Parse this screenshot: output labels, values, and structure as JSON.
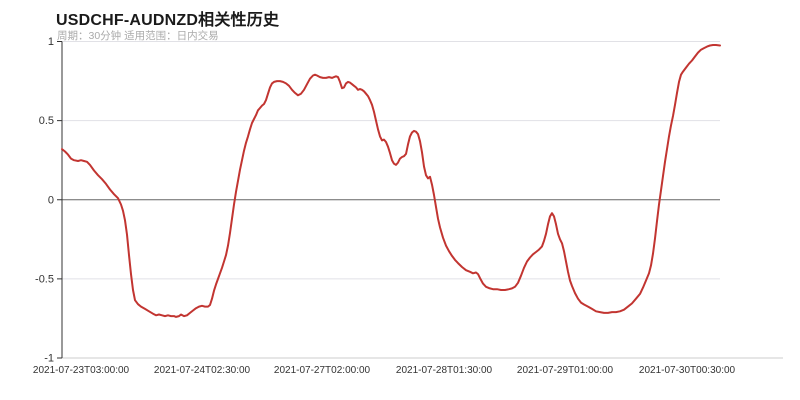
{
  "header": {
    "title": "USDCHF-AUDNZD相关性历史",
    "subtitle": "周期：30分钟 适用范围：日内交易"
  },
  "colors": {
    "line": "#c23531",
    "grid": "#e1e1e6",
    "zero_line": "#666666",
    "axis": "#333333",
    "baseline": "#cccccc",
    "tick_text": "#333333",
    "title": "#1a1a1a",
    "subtitle": "#aaaaaa"
  },
  "chart_data": {
    "type": "line",
    "title": "USDCHF-AUDNZD相关性历史",
    "series_name": "USDCHF-AUDNZD 相关性",
    "xlabel": "",
    "ylabel": "",
    "ylim": [
      -1,
      1
    ],
    "grid": "horizontal-only",
    "legend_position": "none",
    "y_tick_labels": [
      "1",
      "0.5",
      "0",
      "-0.5",
      "-1"
    ],
    "y_tick_values": [
      1,
      0.5,
      0,
      -0.5,
      -1
    ],
    "x_tick_labels": [
      "2021-07-23T03:00:00",
      "2021-07-24T02:30:00",
      "2021-07-27T02:00:00",
      "2021-07-28T01:30:00",
      "2021-07-29T01:00:00",
      "2021-07-30T00:30:00"
    ],
    "points": [
      [
        62,
        0.32
      ],
      [
        65,
        0.305
      ],
      [
        68,
        0.285
      ],
      [
        71,
        0.26
      ],
      [
        74,
        0.25
      ],
      [
        78,
        0.245
      ],
      [
        81,
        0.25
      ],
      [
        84,
        0.245
      ],
      [
        87,
        0.24
      ],
      [
        90,
        0.22
      ],
      [
        94,
        0.185
      ],
      [
        98,
        0.155
      ],
      [
        102,
        0.13
      ],
      [
        106,
        0.1
      ],
      [
        110,
        0.065
      ],
      [
        114,
        0.035
      ],
      [
        118,
        0.01
      ],
      [
        121,
        -0.03
      ],
      [
        123,
        -0.07
      ],
      [
        125,
        -0.13
      ],
      [
        127,
        -0.22
      ],
      [
        129,
        -0.35
      ],
      [
        131,
        -0.47
      ],
      [
        133,
        -0.57
      ],
      [
        135,
        -0.635
      ],
      [
        138,
        -0.66
      ],
      [
        141,
        -0.675
      ],
      [
        145,
        -0.69
      ],
      [
        149,
        -0.705
      ],
      [
        153,
        -0.72
      ],
      [
        156,
        -0.73
      ],
      [
        159,
        -0.725
      ],
      [
        162,
        -0.73
      ],
      [
        165,
        -0.735
      ],
      [
        168,
        -0.73
      ],
      [
        171,
        -0.735
      ],
      [
        174,
        -0.735
      ],
      [
        176,
        -0.74
      ],
      [
        179,
        -0.735
      ],
      [
        181,
        -0.725
      ],
      [
        184,
        -0.735
      ],
      [
        187,
        -0.73
      ],
      [
        190,
        -0.715
      ],
      [
        193,
        -0.7
      ],
      [
        196,
        -0.685
      ],
      [
        199,
        -0.675
      ],
      [
        202,
        -0.67
      ],
      [
        205,
        -0.675
      ],
      [
        208,
        -0.675
      ],
      [
        210,
        -0.665
      ],
      [
        212,
        -0.625
      ],
      [
        214,
        -0.575
      ],
      [
        216,
        -0.535
      ],
      [
        218,
        -0.5
      ],
      [
        220,
        -0.465
      ],
      [
        222,
        -0.43
      ],
      [
        224,
        -0.39
      ],
      [
        226,
        -0.35
      ],
      [
        228,
        -0.29
      ],
      [
        230,
        -0.21
      ],
      [
        232,
        -0.12
      ],
      [
        234,
        -0.03
      ],
      [
        236,
        0.05
      ],
      [
        238,
        0.12
      ],
      [
        240,
        0.19
      ],
      [
        242,
        0.25
      ],
      [
        244,
        0.31
      ],
      [
        246,
        0.36
      ],
      [
        248,
        0.4
      ],
      [
        250,
        0.445
      ],
      [
        252,
        0.485
      ],
      [
        254,
        0.51
      ],
      [
        256,
        0.535
      ],
      [
        258,
        0.565
      ],
      [
        260,
        0.58
      ],
      [
        262,
        0.595
      ],
      [
        264,
        0.605
      ],
      [
        266,
        0.63
      ],
      [
        268,
        0.67
      ],
      [
        270,
        0.71
      ],
      [
        272,
        0.735
      ],
      [
        274,
        0.745
      ],
      [
        277,
        0.75
      ],
      [
        280,
        0.75
      ],
      [
        283,
        0.745
      ],
      [
        286,
        0.735
      ],
      [
        289,
        0.72
      ],
      [
        292,
        0.695
      ],
      [
        295,
        0.675
      ],
      [
        298,
        0.66
      ],
      [
        301,
        0.67
      ],
      [
        304,
        0.695
      ],
      [
        307,
        0.73
      ],
      [
        310,
        0.765
      ],
      [
        313,
        0.785
      ],
      [
        315,
        0.79
      ],
      [
        317,
        0.785
      ],
      [
        320,
        0.775
      ],
      [
        323,
        0.77
      ],
      [
        326,
        0.77
      ],
      [
        329,
        0.775
      ],
      [
        332,
        0.77
      ],
      [
        334,
        0.775
      ],
      [
        336,
        0.78
      ],
      [
        338,
        0.775
      ],
      [
        340,
        0.745
      ],
      [
        342,
        0.705
      ],
      [
        344,
        0.71
      ],
      [
        346,
        0.735
      ],
      [
        348,
        0.745
      ],
      [
        350,
        0.74
      ],
      [
        352,
        0.73
      ],
      [
        354,
        0.72
      ],
      [
        356,
        0.71
      ],
      [
        358,
        0.695
      ],
      [
        360,
        0.7
      ],
      [
        362,
        0.695
      ],
      [
        364,
        0.685
      ],
      [
        366,
        0.67
      ],
      [
        368,
        0.655
      ],
      [
        370,
        0.63
      ],
      [
        372,
        0.6
      ],
      [
        374,
        0.555
      ],
      [
        376,
        0.5
      ],
      [
        378,
        0.445
      ],
      [
        380,
        0.4
      ],
      [
        382,
        0.375
      ],
      [
        384,
        0.38
      ],
      [
        386,
        0.365
      ],
      [
        388,
        0.335
      ],
      [
        390,
        0.295
      ],
      [
        392,
        0.25
      ],
      [
        394,
        0.228
      ],
      [
        396,
        0.22
      ],
      [
        398,
        0.235
      ],
      [
        400,
        0.26
      ],
      [
        402,
        0.27
      ],
      [
        404,
        0.275
      ],
      [
        406,
        0.29
      ],
      [
        408,
        0.35
      ],
      [
        410,
        0.4
      ],
      [
        412,
        0.425
      ],
      [
        414,
        0.435
      ],
      [
        416,
        0.43
      ],
      [
        418,
        0.415
      ],
      [
        420,
        0.37
      ],
      [
        422,
        0.3
      ],
      [
        424,
        0.21
      ],
      [
        426,
        0.155
      ],
      [
        428,
        0.135
      ],
      [
        430,
        0.145
      ],
      [
        432,
        0.095
      ],
      [
        434,
        0.03
      ],
      [
        436,
        -0.045
      ],
      [
        438,
        -0.12
      ],
      [
        440,
        -0.175
      ],
      [
        443,
        -0.24
      ],
      [
        446,
        -0.29
      ],
      [
        449,
        -0.325
      ],
      [
        452,
        -0.355
      ],
      [
        455,
        -0.38
      ],
      [
        458,
        -0.4
      ],
      [
        462,
        -0.425
      ],
      [
        466,
        -0.445
      ],
      [
        470,
        -0.455
      ],
      [
        473,
        -0.465
      ],
      [
        476,
        -0.46
      ],
      [
        478,
        -0.47
      ],
      [
        480,
        -0.495
      ],
      [
        483,
        -0.53
      ],
      [
        486,
        -0.55
      ],
      [
        489,
        -0.558
      ],
      [
        493,
        -0.565
      ],
      [
        497,
        -0.565
      ],
      [
        501,
        -0.57
      ],
      [
        505,
        -0.57
      ],
      [
        509,
        -0.565
      ],
      [
        512,
        -0.56
      ],
      [
        515,
        -0.55
      ],
      [
        518,
        -0.525
      ],
      [
        521,
        -0.48
      ],
      [
        524,
        -0.43
      ],
      [
        527,
        -0.39
      ],
      [
        530,
        -0.365
      ],
      [
        533,
        -0.345
      ],
      [
        536,
        -0.33
      ],
      [
        539,
        -0.315
      ],
      [
        542,
        -0.295
      ],
      [
        544,
        -0.26
      ],
      [
        546,
        -0.215
      ],
      [
        548,
        -0.155
      ],
      [
        550,
        -0.105
      ],
      [
        552,
        -0.085
      ],
      [
        554,
        -0.105
      ],
      [
        556,
        -0.155
      ],
      [
        558,
        -0.215
      ],
      [
        560,
        -0.25
      ],
      [
        562,
        -0.275
      ],
      [
        564,
        -0.325
      ],
      [
        566,
        -0.39
      ],
      [
        568,
        -0.455
      ],
      [
        570,
        -0.51
      ],
      [
        572,
        -0.545
      ],
      [
        575,
        -0.59
      ],
      [
        578,
        -0.625
      ],
      [
        581,
        -0.65
      ],
      [
        584,
        -0.662
      ],
      [
        588,
        -0.675
      ],
      [
        592,
        -0.69
      ],
      [
        596,
        -0.705
      ],
      [
        600,
        -0.71
      ],
      [
        604,
        -0.715
      ],
      [
        608,
        -0.715
      ],
      [
        612,
        -0.71
      ],
      [
        616,
        -0.71
      ],
      [
        620,
        -0.705
      ],
      [
        624,
        -0.695
      ],
      [
        628,
        -0.675
      ],
      [
        632,
        -0.655
      ],
      [
        636,
        -0.625
      ],
      [
        640,
        -0.595
      ],
      [
        643,
        -0.555
      ],
      [
        646,
        -0.51
      ],
      [
        649,
        -0.465
      ],
      [
        651,
        -0.415
      ],
      [
        653,
        -0.34
      ],
      [
        655,
        -0.245
      ],
      [
        657,
        -0.135
      ],
      [
        659,
        -0.03
      ],
      [
        661,
        0.06
      ],
      [
        663,
        0.15
      ],
      [
        665,
        0.24
      ],
      [
        667,
        0.32
      ],
      [
        669,
        0.4
      ],
      [
        671,
        0.47
      ],
      [
        673,
        0.53
      ],
      [
        675,
        0.6
      ],
      [
        677,
        0.675
      ],
      [
        679,
        0.745
      ],
      [
        681,
        0.79
      ],
      [
        683,
        0.81
      ],
      [
        686,
        0.835
      ],
      [
        689,
        0.86
      ],
      [
        692,
        0.88
      ],
      [
        695,
        0.905
      ],
      [
        698,
        0.93
      ],
      [
        701,
        0.948
      ],
      [
        704,
        0.958
      ],
      [
        707,
        0.968
      ],
      [
        710,
        0.975
      ],
      [
        713,
        0.978
      ],
      [
        716,
        0.978
      ],
      [
        720,
        0.975
      ]
    ]
  }
}
